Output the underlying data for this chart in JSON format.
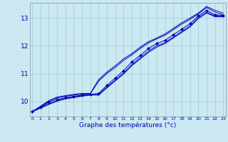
{
  "xlabel": "Graphe des températures (°c)",
  "bg_color": "#cce8f0",
  "line_color": "#0000bb",
  "grid_color": "#99cce0",
  "x_ticks": [
    0,
    1,
    2,
    3,
    4,
    5,
    6,
    7,
    8,
    9,
    10,
    11,
    12,
    13,
    14,
    15,
    16,
    17,
    18,
    19,
    20,
    21,
    22,
    23
  ],
  "y_ticks": [
    10,
    11,
    12,
    13
  ],
  "xlim": [
    -0.3,
    23.3
  ],
  "ylim": [
    9.45,
    13.55
  ],
  "line1": [
    9.62,
    9.75,
    9.88,
    10.0,
    10.08,
    10.13,
    10.18,
    10.22,
    10.22,
    10.48,
    10.73,
    10.98,
    11.28,
    11.52,
    11.76,
    11.95,
    12.08,
    12.28,
    12.48,
    12.68,
    12.98,
    13.18,
    13.05,
    13.05
  ],
  "line2": [
    9.62,
    9.76,
    9.9,
    10.02,
    10.1,
    10.15,
    10.2,
    10.24,
    10.25,
    10.51,
    10.77,
    11.02,
    11.32,
    11.57,
    11.81,
    12.0,
    12.12,
    12.32,
    12.52,
    12.72,
    13.02,
    13.22,
    13.08,
    13.08
  ],
  "line3_marked": [
    9.62,
    9.78,
    9.95,
    10.07,
    10.13,
    10.18,
    10.22,
    10.25,
    10.28,
    10.57,
    10.84,
    11.1,
    11.42,
    11.65,
    11.9,
    12.08,
    12.2,
    12.4,
    12.6,
    12.8,
    13.08,
    13.28,
    13.12,
    13.1
  ],
  "line4": [
    9.62,
    9.8,
    9.99,
    10.12,
    10.18,
    10.22,
    10.26,
    10.27,
    10.72,
    11.0,
    11.22,
    11.47,
    11.67,
    11.9,
    12.1,
    12.25,
    12.38,
    12.58,
    12.78,
    12.95,
    13.15,
    13.38,
    13.22,
    13.12
  ],
  "line5": [
    9.62,
    9.82,
    10.02,
    10.15,
    10.2,
    10.25,
    10.28,
    10.28,
    10.78,
    11.05,
    11.28,
    11.53,
    11.72,
    11.95,
    12.15,
    12.28,
    12.43,
    12.63,
    12.83,
    13.0,
    13.18,
    13.42,
    13.28,
    13.18
  ]
}
